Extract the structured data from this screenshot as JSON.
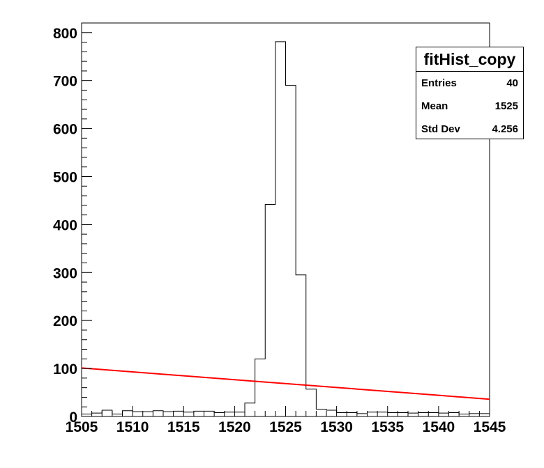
{
  "chart_data": {
    "type": "bar",
    "histogram": {
      "name": "fitHist_copy",
      "bin_low": 1505,
      "bin_width": 1,
      "values": [
        5,
        7,
        13,
        5,
        12,
        10,
        10,
        12,
        10,
        11,
        9,
        11,
        11,
        8,
        9,
        9,
        28,
        120,
        442,
        781,
        690,
        295,
        57,
        15,
        13,
        8,
        8,
        6,
        9,
        9,
        8,
        8,
        7,
        8,
        8,
        7,
        8,
        5,
        6,
        6
      ]
    },
    "fit_line": {
      "color": "#ff0000",
      "x": [
        1505,
        1545
      ],
      "y": [
        101,
        36
      ]
    },
    "xlim": [
      1505,
      1545
    ],
    "ylim": [
      0,
      820
    ],
    "x_ticks": [
      "1505",
      "1510",
      "1515",
      "1520",
      "1525",
      "1530",
      "1535",
      "1540",
      "1545"
    ],
    "y_ticks": [
      "0",
      "100",
      "200",
      "300",
      "400",
      "500",
      "600",
      "700",
      "800"
    ],
    "xlabel": "",
    "ylabel": "",
    "title": ""
  },
  "stats": {
    "title": "fitHist_copy",
    "rows": [
      {
        "label": "Entries",
        "value": "40"
      },
      {
        "label": "Mean",
        "value": "1525"
      },
      {
        "label": "Std Dev",
        "value": "4.256"
      }
    ]
  }
}
